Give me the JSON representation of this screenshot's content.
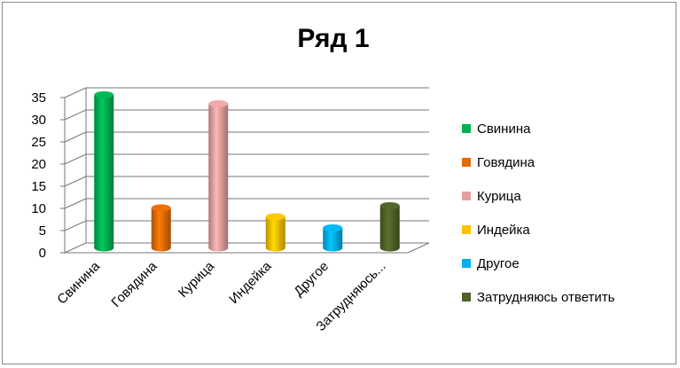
{
  "chart_data": {
    "type": "bar",
    "style": "3d-cylinder",
    "title": "Ряд 1",
    "categories": [
      "Свинина",
      "Говядина",
      "Курица",
      "Индейка",
      "Другое",
      "Затрудняюсь..."
    ],
    "values": [
      34.5,
      9,
      32.5,
      7,
      4.5,
      9.5
    ],
    "colors": [
      "#00b050",
      "#e36c09",
      "#e6a0a0",
      "#ffc000",
      "#00b0f0",
      "#4f6228"
    ],
    "ylim": [
      0,
      35
    ],
    "yticks": [
      "0",
      "5",
      "10",
      "15",
      "20",
      "25",
      "30",
      "35"
    ],
    "grid": true,
    "legend_position": "right",
    "legend": [
      "Свинина",
      "Говядина",
      "Курица",
      "Индейка",
      "Другое",
      "Затрудняюсь ответить"
    ]
  }
}
